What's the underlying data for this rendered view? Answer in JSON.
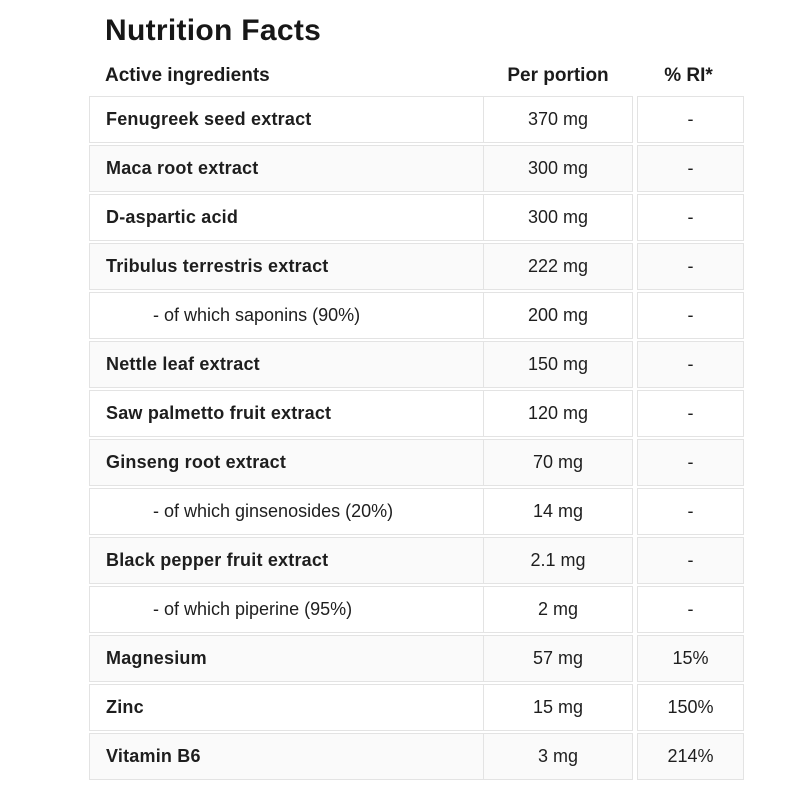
{
  "title": "Nutrition Facts",
  "colors": {
    "border": "#e3e3e3",
    "stripe": "#fafafa",
    "text": "#1e1e1e"
  },
  "table": {
    "columns": [
      "Active ingredients",
      "Per portion",
      "% RI*"
    ],
    "rows": [
      {
        "ingredient": "Fenugreek seed extract",
        "per_portion": "370 mg",
        "ri": "-",
        "sub": false
      },
      {
        "ingredient": "Maca root extract",
        "per_portion": "300 mg",
        "ri": "-",
        "sub": false
      },
      {
        "ingredient": "D-aspartic acid",
        "per_portion": "300 mg",
        "ri": "-",
        "sub": false
      },
      {
        "ingredient": "Tribulus terrestris extract",
        "per_portion": "222 mg",
        "ri": "-",
        "sub": false
      },
      {
        "ingredient": "- of which saponins (90%)",
        "per_portion": "200 mg",
        "ri": "-",
        "sub": true
      },
      {
        "ingredient": "Nettle leaf extract",
        "per_portion": "150 mg",
        "ri": "-",
        "sub": false
      },
      {
        "ingredient": "Saw palmetto fruit extract",
        "per_portion": "120 mg",
        "ri": "-",
        "sub": false
      },
      {
        "ingredient": "Ginseng root extract",
        "per_portion": "70 mg",
        "ri": "-",
        "sub": false
      },
      {
        "ingredient": "- of which ginsenosides (20%)",
        "per_portion": "14 mg",
        "ri": "-",
        "sub": true
      },
      {
        "ingredient": "Black pepper fruit extract",
        "per_portion": "2.1 mg",
        "ri": "-",
        "sub": false
      },
      {
        "ingredient": "- of which piperine (95%)",
        "per_portion": "2 mg",
        "ri": "-",
        "sub": true
      },
      {
        "ingredient": "Magnesium",
        "per_portion": "57 mg",
        "ri": "15%",
        "sub": false
      },
      {
        "ingredient": "Zinc",
        "per_portion": "15 mg",
        "ri": "150%",
        "sub": false
      },
      {
        "ingredient": "Vitamin B6",
        "per_portion": "3 mg",
        "ri": "214%",
        "sub": false
      }
    ]
  }
}
